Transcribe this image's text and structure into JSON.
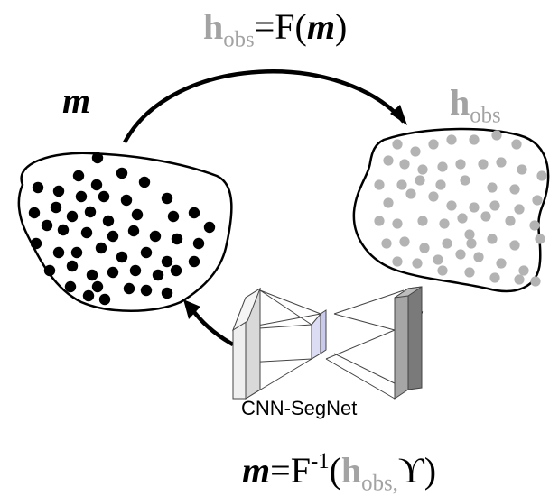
{
  "forward_equation": {
    "lhs_symbol": "h",
    "lhs_subscript": "obs",
    "equals": "=",
    "function": "F(",
    "argument": "m",
    "close": ")"
  },
  "inverse_equation": {
    "lhs_symbol": "m",
    "equals": "=",
    "function": "F",
    "superscript": "-1",
    "open": "(",
    "arg_symbol": "h",
    "arg_subscript": "obs,",
    "extra_arg": "ϒ",
    "close": ")"
  },
  "labels": {
    "model": "m",
    "observation_symbol": "h",
    "observation_subscript": "obs"
  },
  "network": {
    "name": "CNN-SegNet"
  },
  "colors": {
    "model_dots": "#000000",
    "observation_dots": "#b3b3b3",
    "observation_text": "#a3a3a3",
    "encoder_face": "#e6e6e6",
    "bottleneck_face": "#dcdcf5",
    "decoder_face": "#8c8c8c"
  }
}
